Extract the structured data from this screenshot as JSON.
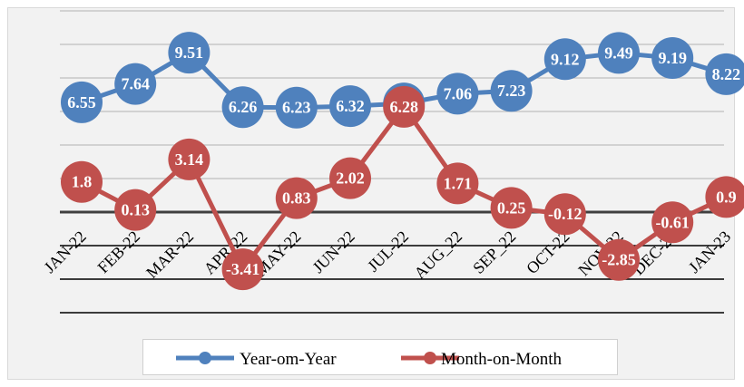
{
  "chart_data": {
    "type": "line",
    "categories": [
      "JAN-22",
      "FEB-22",
      "MAR-22",
      "APR-22",
      "MAY-22",
      "JUN-22",
      "JUL-22",
      "AUG_22",
      "SEP_22",
      "OCT-22",
      "NOV-22",
      "DEC-22",
      "JAN-23"
    ],
    "series": [
      {
        "name": "Year-om-Year",
        "color": "#4f81bd",
        "values": [
          6.55,
          7.64,
          9.51,
          6.26,
          6.23,
          6.32,
          6.48,
          7.06,
          7.23,
          9.12,
          9.49,
          9.19,
          8.22
        ],
        "labels": [
          "6.55",
          "7.64",
          "9.51",
          "6.26",
          "6.23",
          "6.32",
          "6.48",
          "7.06",
          "7.23",
          "9.12",
          "9.49",
          "9.19",
          "8.22"
        ]
      },
      {
        "name": "Month-on-Month",
        "color": "#c0504d",
        "values": [
          1.8,
          0.13,
          3.14,
          -3.41,
          0.83,
          2.02,
          6.28,
          1.71,
          0.25,
          -0.12,
          -2.85,
          -0.61,
          0.9
        ],
        "labels": [
          "1.8",
          "0.13",
          "3.14",
          "-3.41",
          "0.83",
          "2.02",
          "6.28",
          "1.71",
          "0.25",
          "-0.12",
          "-2.85",
          "-0.61",
          "0.9"
        ]
      }
    ],
    "ylim": [
      -6,
      12
    ],
    "grid": true,
    "legend": "bottom"
  }
}
